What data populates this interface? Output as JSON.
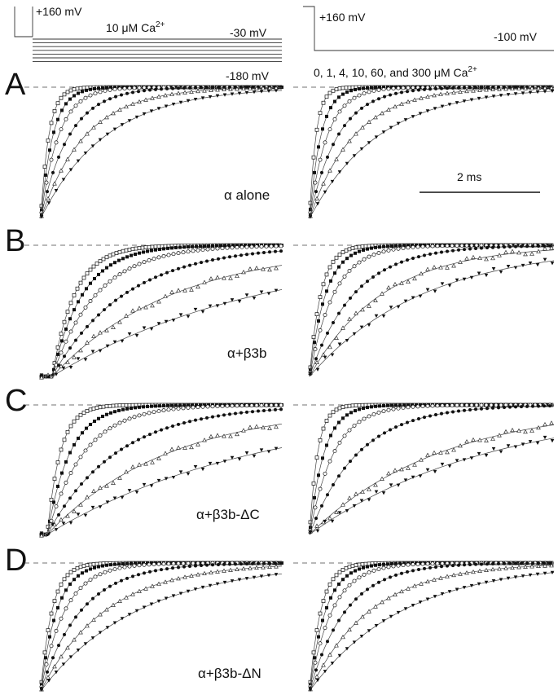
{
  "figure": {
    "protocol_left": {
      "v_top": "+160 mV",
      "ca_label": "10 μM Ca",
      "ca_sup": "2+",
      "v_mid": "-30 mV",
      "v_bottom": "-180 mV"
    },
    "protocol_right": {
      "v_top": "+160 mV",
      "v_end": "-100 mV",
      "ca_list": "0, 1, 4, 10, 60, and 300 μM Ca",
      "ca_sup": "2+"
    },
    "scale_bar": {
      "label": "2 ms"
    },
    "panels": [
      {
        "letter": "A",
        "condition": "α alone"
      },
      {
        "letter": "B",
        "condition": "α+β3b"
      },
      {
        "letter": "C",
        "condition": "α+β3b-ΔC"
      },
      {
        "letter": "D",
        "condition": "α+β3b-ΔN"
      }
    ],
    "colors": {
      "ink": "#111111",
      "trace": "#222222",
      "background": "#ffffff"
    }
  }
}
